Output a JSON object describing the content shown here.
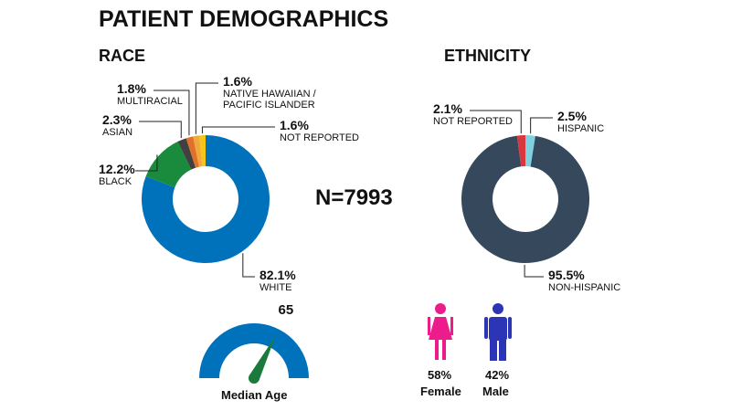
{
  "title": "PATIENT DEMOGRAPHICS",
  "n_label": "N=7993",
  "chart_data": [
    {
      "type": "donut",
      "title": "RACE",
      "categories": [
        "WHITE",
        "BLACK",
        "ASIAN",
        "MULTIRACIAL",
        "NATIVE HAWAIIAN / PACIFIC ISLANDER",
        "NOT REPORTED"
      ],
      "values": [
        82.1,
        12.2,
        2.3,
        1.8,
        1.6,
        1.6
      ],
      "value_labels": [
        "82.1%",
        "12.2%",
        "2.3%",
        "1.8%",
        "1.6%",
        "1.6%"
      ],
      "colors": [
        "#0072bc",
        "#1a8a3c",
        "#404040",
        "#e0702a",
        "#f2a93b",
        "#f5c518"
      ]
    },
    {
      "type": "donut",
      "title": "ETHNICITY",
      "categories": [
        "HISPANIC",
        "NON-HISPANIC",
        "NOT REPORTED"
      ],
      "values": [
        2.5,
        95.5,
        2.1
      ],
      "value_labels": [
        "2.5%",
        "95.5%",
        "2.1%"
      ],
      "colors": [
        "#7fd0e0",
        "#36495c",
        "#d9363e"
      ]
    },
    {
      "type": "gauge",
      "title": "Median Age",
      "value": 65,
      "ylim": [
        0,
        100
      ],
      "color": "#0072bc",
      "needle_color": "#1a7a3c"
    },
    {
      "type": "gender",
      "categories": [
        "Female",
        "Male"
      ],
      "values": [
        58,
        42
      ],
      "value_labels": [
        "58%",
        "42%"
      ],
      "colors": [
        "#ec1c8c",
        "#2b35b5"
      ]
    }
  ]
}
